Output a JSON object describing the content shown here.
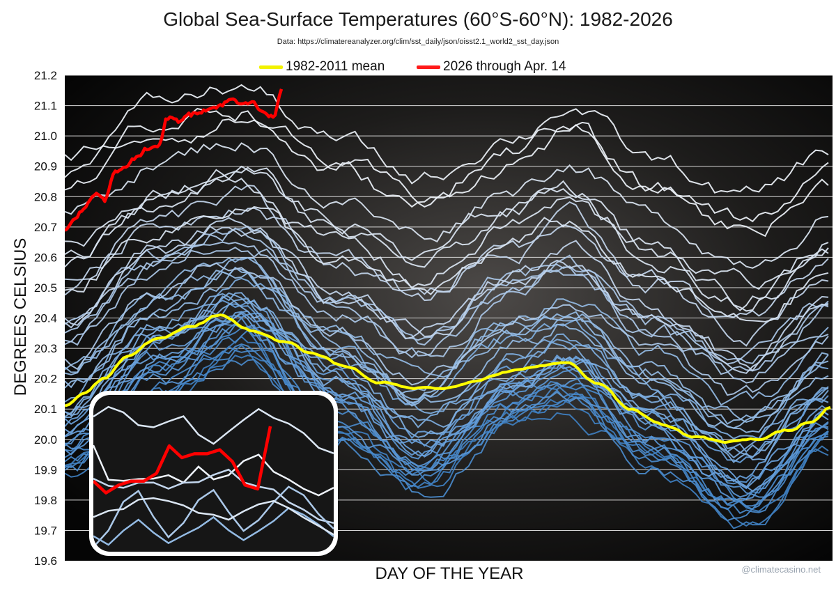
{
  "chart_data": {
    "type": "line",
    "title": "Global Sea-Surface Temperatures (60°S-60°N): 1982-2026",
    "subtitle": "Data: https://climatereanalyzer.org/clim/sst_daily/json/oisst2.1_world2_sst_day.json",
    "xlabel": "DAY OF THE YEAR",
    "ylabel": "DEGREES CELSIUS",
    "credit": "@climatecasino.net",
    "ylim": [
      19.6,
      21.2
    ],
    "xlim": [
      1,
      366
    ],
    "yticks": [
      "19.6",
      "19.7",
      "19.8",
      "19.9",
      "20.0",
      "20.1",
      "20.2",
      "20.3",
      "20.4",
      "20.5",
      "20.6",
      "20.7",
      "20.8",
      "20.9",
      "21.0",
      "21.1",
      "21.2"
    ],
    "grid": true,
    "legend_position": "top",
    "background": "#000000",
    "highlight_series": [
      {
        "name": "1982-2011 mean",
        "color": "#ffff00",
        "x": [
          1,
          10,
          20,
          30,
          45,
          60,
          75,
          90,
          105,
          120,
          135,
          150,
          165,
          180,
          195,
          210,
          225,
          240,
          255,
          270,
          285,
          300,
          315,
          330,
          345,
          355,
          366
        ],
        "y": [
          20.11,
          20.15,
          20.2,
          20.27,
          20.33,
          20.37,
          20.41,
          20.36,
          20.32,
          20.28,
          20.24,
          20.19,
          20.17,
          20.17,
          20.19,
          20.22,
          20.24,
          20.25,
          20.18,
          20.1,
          20.05,
          20.01,
          19.99,
          20.0,
          20.03,
          20.06,
          20.11
        ]
      },
      {
        "name": "2026 through Apr. 14",
        "color": "#ff0000",
        "x": [
          1,
          5,
          10,
          15,
          20,
          25,
          30,
          35,
          40,
          45,
          50,
          55,
          60,
          65,
          70,
          75,
          80,
          85,
          90,
          95,
          100,
          104
        ],
        "y": [
          20.69,
          20.72,
          20.76,
          20.81,
          20.79,
          20.88,
          20.9,
          20.93,
          20.96,
          20.96,
          21.06,
          21.05,
          21.07,
          21.08,
          21.09,
          21.1,
          21.12,
          21.11,
          21.11,
          21.08,
          21.06,
          21.15
        ]
      }
    ],
    "background_series": {
      "description": "Individual years 1982-2025, light blue (older) to white (recent)",
      "colors": [
        "#3f7fc0",
        "#4a8acb",
        "#5a96d4",
        "#6aa2dc",
        "#7eaee0",
        "#94bbe4",
        "#abc8e8",
        "#c3d6ed",
        "#dbe6f3",
        "#eef3fa"
      ],
      "x": [
        1,
        45,
        85,
        130,
        170,
        215,
        240,
        280,
        325,
        366
      ],
      "representative_y": [
        [
          19.87,
          20.1,
          20.24,
          20.0,
          19.82,
          20.02,
          20.08,
          19.9,
          19.72,
          19.95
        ],
        [
          19.92,
          20.18,
          20.3,
          20.05,
          19.88,
          20.08,
          20.14,
          19.96,
          19.78,
          20.0
        ],
        [
          19.98,
          20.23,
          20.36,
          20.1,
          19.93,
          20.14,
          20.2,
          20.01,
          19.83,
          20.05
        ],
        [
          20.05,
          20.3,
          20.43,
          20.18,
          20.0,
          20.21,
          20.28,
          20.08,
          19.9,
          20.12
        ],
        [
          20.12,
          20.38,
          20.5,
          20.26,
          20.08,
          20.29,
          20.36,
          20.16,
          19.98,
          20.2
        ],
        [
          20.2,
          20.45,
          20.57,
          20.33,
          20.16,
          20.37,
          20.43,
          20.24,
          20.06,
          20.28
        ],
        [
          20.3,
          20.53,
          20.63,
          20.41,
          20.26,
          20.46,
          20.52,
          20.33,
          20.18,
          20.38
        ],
        [
          20.45,
          20.66,
          20.75,
          20.54,
          20.42,
          20.6,
          20.66,
          20.47,
          20.32,
          20.52
        ],
        [
          20.62,
          20.82,
          20.9,
          20.7,
          20.58,
          20.76,
          20.83,
          20.64,
          20.5,
          20.66
        ],
        [
          20.94,
          21.1,
          21.15,
          20.97,
          20.85,
          21.0,
          21.1,
          20.9,
          20.78,
          20.93
        ]
      ]
    },
    "inset": {
      "description": "Zoomed view of recent period showing 2026 (red) among warmest years",
      "red_y": [
        19.93,
        19.9,
        19.92,
        19.93,
        19.93,
        19.95,
        20.02,
        19.99,
        20.0,
        20.0,
        20.01,
        19.98,
        19.92,
        19.91,
        20.07
      ]
    }
  }
}
